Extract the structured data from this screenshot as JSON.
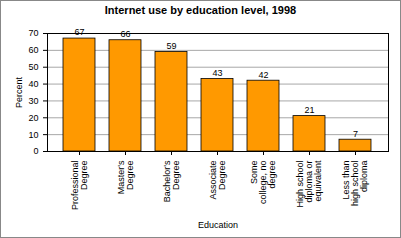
{
  "chart_data": {
    "type": "bar",
    "title": "Internet use by education level, 1998",
    "x_label": "Education",
    "y_label": "Percent",
    "categories": [
      "Professional Degree",
      "Master's Degree",
      "Bachelor's Degree",
      "Associate Degree",
      "Some college, no degree",
      "High school diploma or equivalent",
      "Less than high school diploma"
    ],
    "values": [
      67,
      66,
      59,
      43,
      42,
      21,
      7
    ],
    "color": "#ff9900",
    "ylim": [
      0,
      70
    ],
    "yticks": [
      0,
      10,
      20,
      30,
      40,
      50,
      60,
      70
    ],
    "grid": true,
    "data_labels": true
  }
}
